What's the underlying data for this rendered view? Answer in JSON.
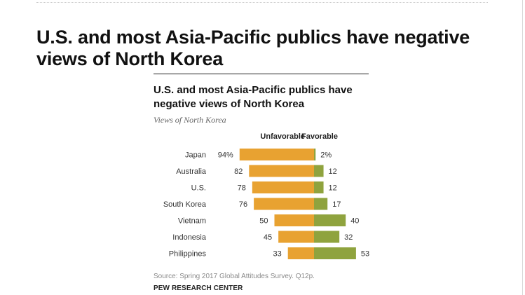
{
  "page": {
    "title": "U.S. and most Asia-Pacific publics have negative views of North Korea"
  },
  "chart_data": {
    "type": "bar",
    "title": "U.S. and most Asia-Pacific publics have negative views of North Korea",
    "subtitle": "Views of North Korea",
    "categories": [
      "Japan",
      "Australia",
      "U.S.",
      "South Korea",
      "Vietnam",
      "Indonesia",
      "Philippines"
    ],
    "series": [
      {
        "name": "Unfavorable",
        "values": [
          94,
          82,
          78,
          76,
          50,
          45,
          33
        ],
        "labels": [
          "94%",
          "82",
          "78",
          "76",
          "50",
          "45",
          "33"
        ],
        "color": "#E8A231"
      },
      {
        "name": "Favorable",
        "values": [
          2,
          12,
          12,
          17,
          40,
          32,
          53
        ],
        "labels": [
          "2%",
          "12",
          "12",
          "17",
          "40",
          "32",
          "53"
        ],
        "color": "#8FA33E"
      }
    ],
    "source": "Source: Spring 2017 Global Attitudes Survey. Q12p.",
    "organization": "PEW RESEARCH CENTER"
  }
}
